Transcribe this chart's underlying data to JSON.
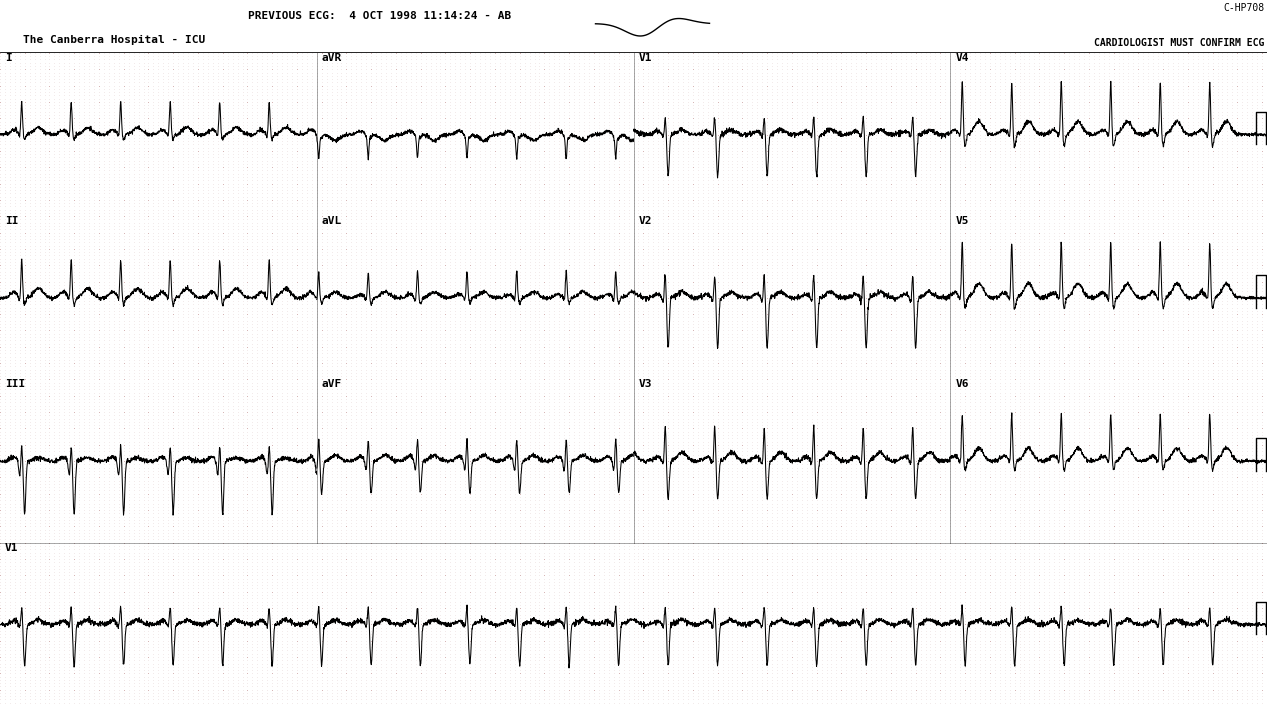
{
  "title_line1": "PREVIOUS ECG:  4 OCT 1998 11:14:24 - AB",
  "title_line2": "The Canberra Hospital - ICU",
  "top_right_line1": "C-HP708",
  "top_right_line2": "CARDIOLOGIST MUST CONFIRM ECG",
  "background_color": "#ffffff",
  "grid_dot_color": "#b0b0b0",
  "grid_major_color": "#909090",
  "ecg_color": "#000000",
  "figure_width": 12.67,
  "figure_height": 7.06,
  "hr": 150,
  "duration": 10.24,
  "fs": 500
}
